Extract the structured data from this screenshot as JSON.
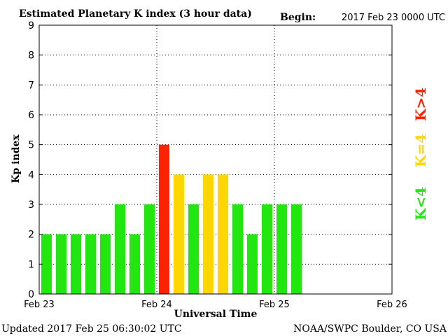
{
  "header": {
    "title": "Estimated Planetary K index (3 hour data)",
    "begin_label": "Begin:",
    "begin_value": "2017 Feb 23 0000 UTC"
  },
  "footer": {
    "updated": "Updated 2017 Feb 25 06:30:02 UTC",
    "source": "NOAA/SWPC Boulder, CO USA"
  },
  "legend": {
    "low": "K<4",
    "mid": "K=4",
    "high": "K>4"
  },
  "colors": {
    "low": "#22e60f",
    "mid": "#ffd600",
    "high": "#ff2200"
  },
  "chart_data": {
    "type": "bar",
    "title": "Estimated Planetary K index (3 hour data)",
    "xlabel": "Universal Time",
    "ylabel": "Kp index",
    "ylim": [
      0,
      9
    ],
    "yticks": [
      "0",
      "1",
      "2",
      "3",
      "4",
      "5",
      "6",
      "7",
      "8",
      "9"
    ],
    "xticks": [
      "Feb 23",
      "Feb 24",
      "Feb 25",
      "Feb 26"
    ],
    "bars_per_day": 8,
    "grid": true,
    "values": [
      2,
      2,
      2,
      2,
      2,
      3,
      2,
      3,
      5,
      4,
      3,
      4,
      4,
      3,
      2,
      3,
      3,
      3
    ]
  }
}
